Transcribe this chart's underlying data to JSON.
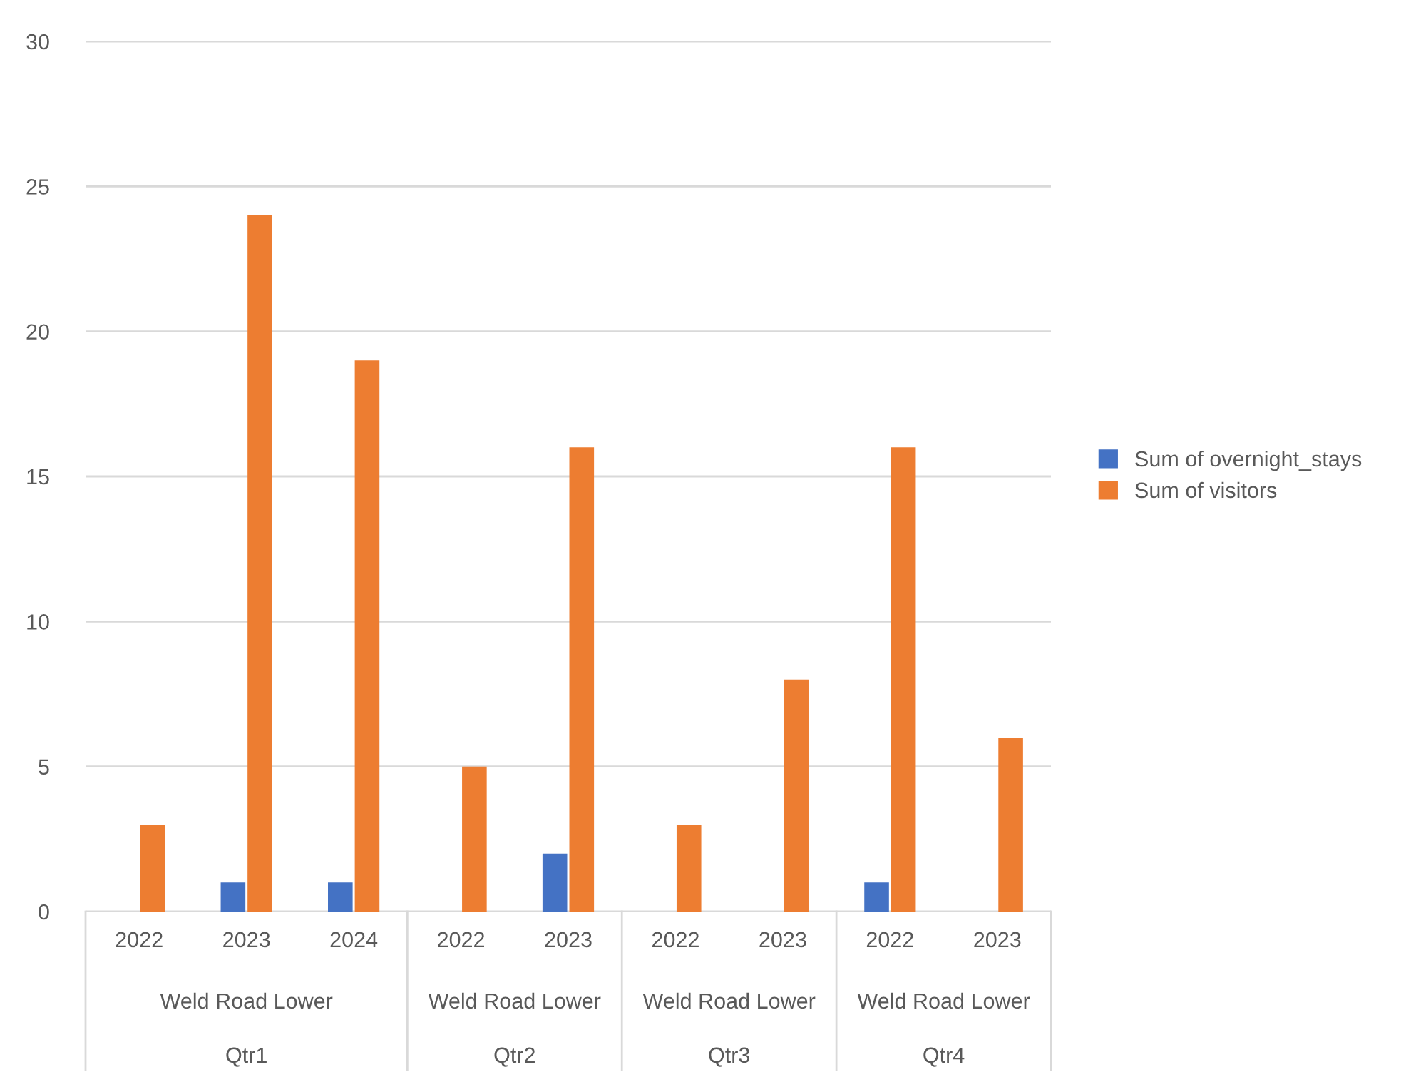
{
  "chart_data": {
    "type": "bar",
    "categories": [
      "2022",
      "2023",
      "2024",
      "2022",
      "2023",
      "2022",
      "2023",
      "2022",
      "2023"
    ],
    "series": [
      {
        "name": "Sum of overnight_stays",
        "color": "#4472c4",
        "values": [
          null,
          1,
          1,
          null,
          2,
          null,
          null,
          1,
          null
        ]
      },
      {
        "name": "Sum of visitors",
        "color": "#ed7d31",
        "values": [
          3,
          24,
          19,
          5,
          16,
          3,
          8,
          16,
          6
        ]
      }
    ],
    "annotations": [
      "Weld Road Lower",
      "Weld Road Lower",
      "Weld Road Lower",
      "Weld Road Lower",
      "Qtr1",
      "Qtr2",
      "Qtr3",
      "Qtr4"
    ],
    "ylim": [
      0,
      30
    ],
    "yticks": [
      0,
      5,
      10,
      15,
      20,
      25,
      30
    ],
    "grid": "y",
    "legend": "right"
  }
}
